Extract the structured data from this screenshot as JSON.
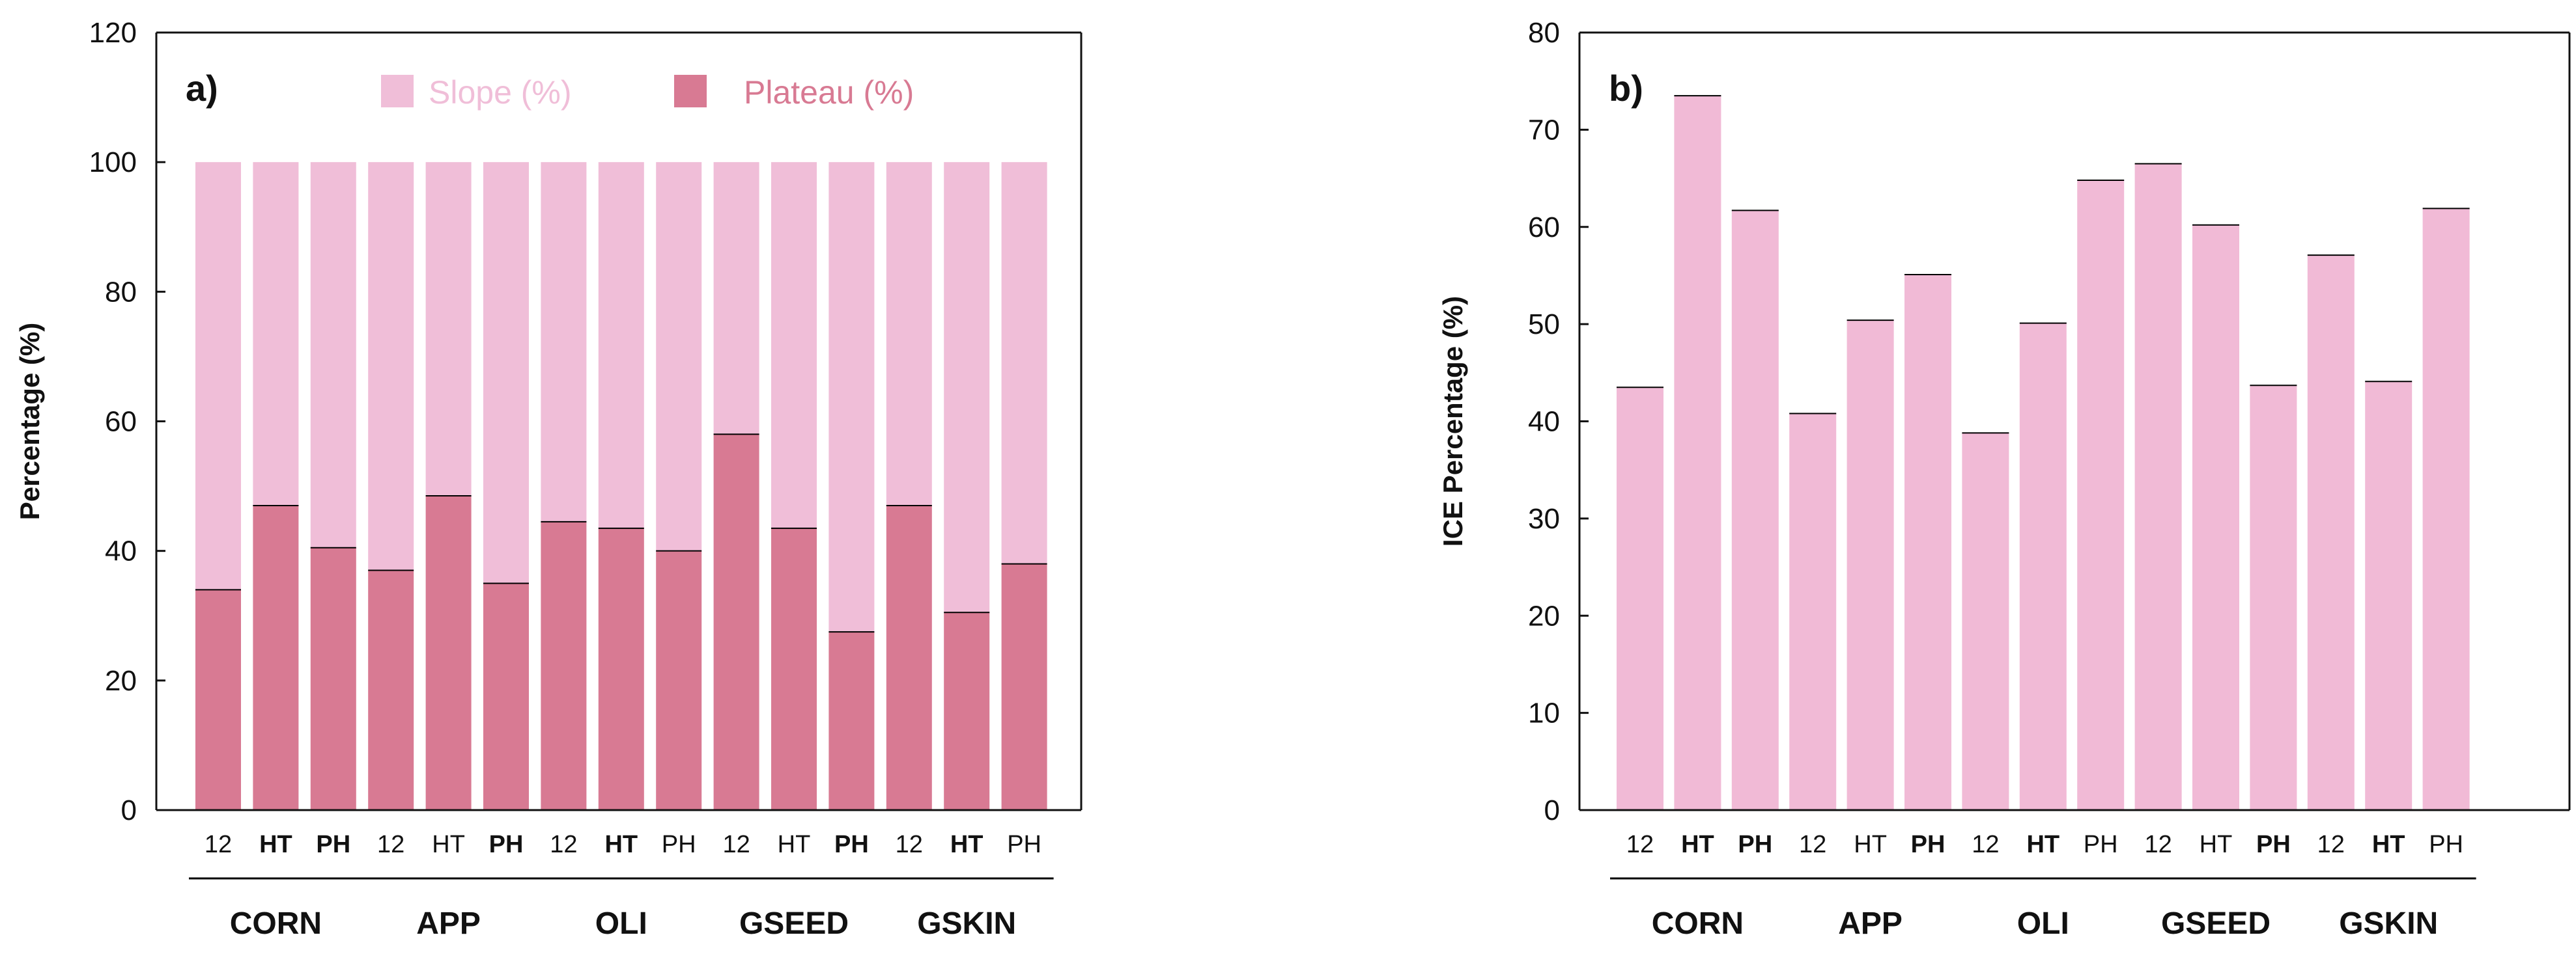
{
  "colors": {
    "slope": "#f0bed8",
    "plateau": "#d87a93",
    "ice": "#f1bad6",
    "axis": "#111111",
    "text": "#111111"
  },
  "chart_data": [
    {
      "type": "bar",
      "stacked": true,
      "panel_label": "a)",
      "ylabel": "Percentage (%)",
      "xlabel": "",
      "ylim": [
        0,
        120
      ],
      "yticks": [
        0,
        20,
        40,
        60,
        80,
        100,
        120
      ],
      "grid": false,
      "legend": {
        "placement": "top-center",
        "entries": [
          "Slope (%)",
          "Plateau (%)"
        ]
      },
      "groups": [
        "CORN",
        "APP",
        "OLI",
        "GSEED",
        "GSKIN"
      ],
      "categories": [
        "12",
        "HT",
        "PH",
        "12",
        "HT",
        "PH",
        "12",
        "HT",
        "PH",
        "12",
        "HT",
        "PH",
        "12",
        "HT",
        "PH"
      ],
      "category_bold": [
        false,
        true,
        true,
        false,
        false,
        true,
        false,
        true,
        false,
        false,
        false,
        true,
        false,
        true,
        false
      ],
      "series": [
        {
          "name": "Plateau (%)",
          "values": [
            34,
            47,
            40.5,
            37,
            48.5,
            35,
            44.5,
            43.5,
            40,
            58,
            43.5,
            27.5,
            47,
            30.5,
            38
          ]
        },
        {
          "name": "Slope (%)",
          "values": [
            66,
            53,
            59.5,
            63,
            51.5,
            65,
            55.5,
            56.5,
            60,
            42,
            56.5,
            72.5,
            53,
            69.5,
            62
          ]
        }
      ]
    },
    {
      "type": "bar",
      "panel_label": "b)",
      "ylabel": "ICE Percentage (%)",
      "xlabel": "",
      "ylim": [
        0,
        80
      ],
      "yticks": [
        0,
        10,
        20,
        30,
        40,
        50,
        60,
        70,
        80
      ],
      "grid": false,
      "groups": [
        "CORN",
        "APP",
        "OLI",
        "GSEED",
        "GSKIN"
      ],
      "categories": [
        "12",
        "HT",
        "PH",
        "12",
        "HT",
        "PH",
        "12",
        "HT",
        "PH",
        "12",
        "HT",
        "PH",
        "12",
        "HT",
        "PH"
      ],
      "category_bold": [
        false,
        true,
        true,
        false,
        false,
        true,
        false,
        true,
        false,
        false,
        false,
        true,
        false,
        true,
        false
      ],
      "series": [
        {
          "name": "ICE Percentage (%)",
          "values": [
            43.5,
            73.5,
            61.7,
            40.8,
            50.4,
            55.1,
            38.8,
            50.1,
            64.8,
            66.5,
            60.2,
            43.7,
            57.1,
            44.1,
            61.9
          ]
        }
      ]
    }
  ]
}
